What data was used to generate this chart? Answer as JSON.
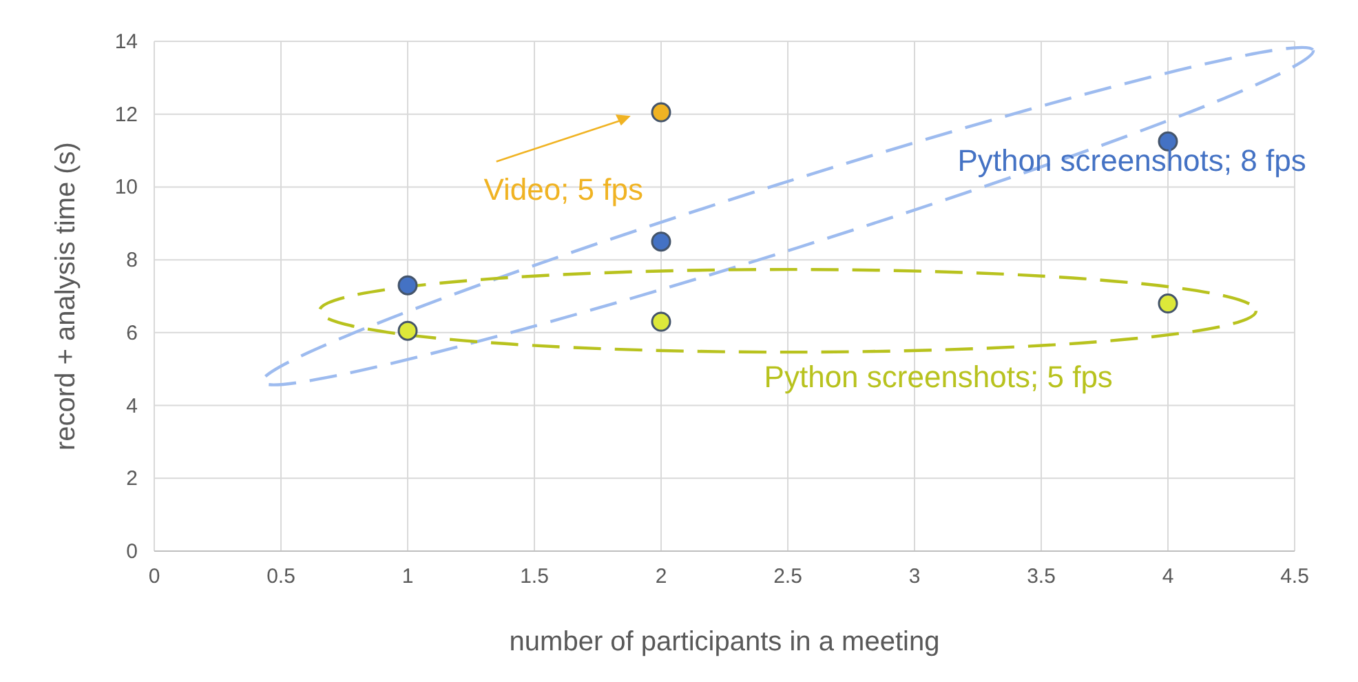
{
  "chart_data": {
    "type": "scatter",
    "xlabel": "number of participants in a meeting",
    "ylabel": "record + analysis time (s)",
    "xlim": [
      0,
      4.5
    ],
    "xticks": [
      0,
      0.5,
      1,
      1.5,
      2,
      2.5,
      3,
      3.5,
      4,
      4.5
    ],
    "ylim": [
      0,
      14
    ],
    "yticks": [
      0,
      2,
      4,
      6,
      8,
      10,
      12,
      14
    ],
    "grid": true,
    "marker": "circle",
    "series": [
      {
        "name": "Video; 5 fps",
        "color": "#f0b323",
        "x": [
          2
        ],
        "values": [
          12.05
        ]
      },
      {
        "name": "Python screenshots; 8 fps",
        "color": "#4472c4",
        "x": [
          1,
          2,
          4
        ],
        "values": [
          7.3,
          8.5,
          11.25
        ]
      },
      {
        "name": "Python screenshots; 5 fps",
        "color": "#dde83a",
        "x": [
          1,
          2,
          4
        ],
        "values": [
          6.05,
          6.3,
          6.8
        ]
      }
    ]
  }
}
